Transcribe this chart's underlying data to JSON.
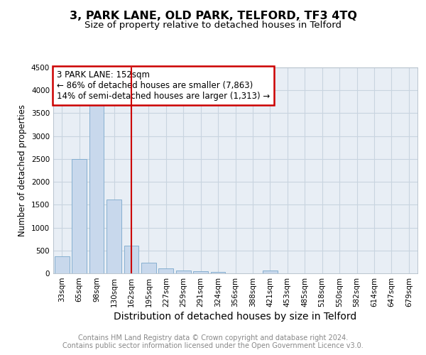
{
  "title": "3, PARK LANE, OLD PARK, TELFORD, TF3 4TQ",
  "subtitle": "Size of property relative to detached houses in Telford",
  "xlabel": "Distribution of detached houses by size in Telford",
  "ylabel": "Number of detached properties",
  "categories": [
    "33sqm",
    "65sqm",
    "98sqm",
    "130sqm",
    "162sqm",
    "195sqm",
    "227sqm",
    "259sqm",
    "291sqm",
    "324sqm",
    "356sqm",
    "388sqm",
    "421sqm",
    "453sqm",
    "485sqm",
    "518sqm",
    "550sqm",
    "582sqm",
    "614sqm",
    "647sqm",
    "679sqm"
  ],
  "values": [
    380,
    2500,
    3700,
    1620,
    600,
    240,
    110,
    65,
    45,
    35,
    0,
    0,
    55,
    0,
    0,
    0,
    0,
    0,
    0,
    0,
    0
  ],
  "bar_color": "#c8d8ec",
  "bar_edge_color": "#7aa8cc",
  "vline_x": 4,
  "vline_color": "#cc0000",
  "annotation_lines": [
    "3 PARK LANE: 152sqm",
    "← 86% of detached houses are smaller (7,863)",
    "14% of semi-detached houses are larger (1,313) →"
  ],
  "annotation_box_color": "#ffffff",
  "annotation_box_edge_color": "#cc0000",
  "ylim": [
    0,
    4500
  ],
  "yticks": [
    0,
    500,
    1000,
    1500,
    2000,
    2500,
    3000,
    3500,
    4000,
    4500
  ],
  "grid_color": "#c8d4e0",
  "bg_color": "#e8eef5",
  "footer_line1": "Contains HM Land Registry data © Crown copyright and database right 2024.",
  "footer_line2": "Contains public sector information licensed under the Open Government Licence v3.0.",
  "title_fontsize": 11.5,
  "subtitle_fontsize": 9.5,
  "xlabel_fontsize": 10,
  "ylabel_fontsize": 8.5,
  "tick_fontsize": 7.5,
  "annotation_fontsize": 8.5,
  "footer_fontsize": 7
}
